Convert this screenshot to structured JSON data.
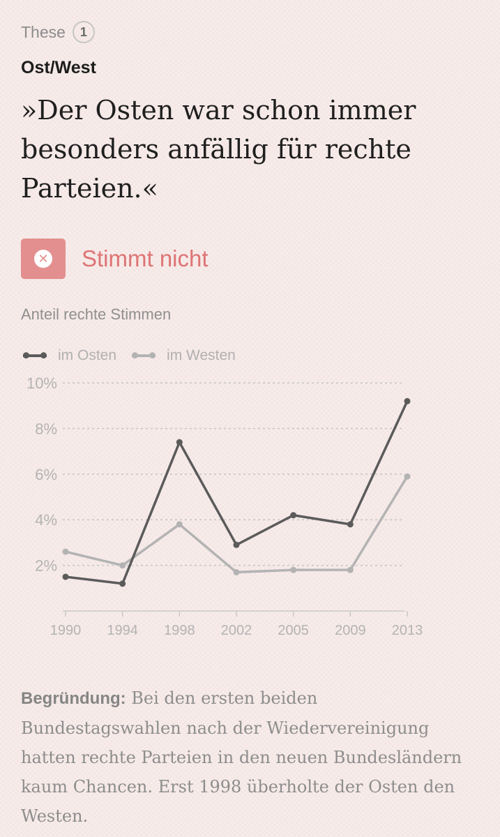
{
  "thesis": {
    "label": "These",
    "number": "1"
  },
  "category": "Ost/West",
  "quote": "»Der Osten war schon immer besonders anfällig für rechte Parteien.«",
  "verdict": {
    "label": "Stimmt nicht",
    "icon": "close-icon",
    "color": "#e38f8f",
    "text_color": "#de7474"
  },
  "chart_data": {
    "type": "line",
    "title": "Anteil rechte Stimmen",
    "categories": [
      "1990",
      "1994",
      "1998",
      "2002",
      "2005",
      "2009",
      "2013"
    ],
    "series": [
      {
        "name": "im Osten",
        "color": "#5b5b5b",
        "values": [
          1.5,
          1.2,
          7.4,
          2.9,
          4.2,
          3.8,
          9.2
        ]
      },
      {
        "name": "im Westen",
        "color": "#b3b3b3",
        "values": [
          2.6,
          2.0,
          3.8,
          1.7,
          1.8,
          1.8,
          5.9
        ]
      }
    ],
    "ylim": [
      0,
      10
    ],
    "yticks": [
      {
        "value": 2,
        "label": "2%"
      },
      {
        "value": 4,
        "label": "4%"
      },
      {
        "value": 6,
        "label": "6%"
      },
      {
        "value": 8,
        "label": "8%"
      },
      {
        "value": 10,
        "label": "10%"
      }
    ],
    "grid": true,
    "legend": "top-left"
  },
  "reason": {
    "label": "Begründung:",
    "text": "Bei den ersten beiden Bundestagswahlen nach der Wiedervereinigung hatten rechte Parteien in den neuen Bundesländern kaum Chancen. Erst 1998 überholte der Osten den Westen."
  }
}
